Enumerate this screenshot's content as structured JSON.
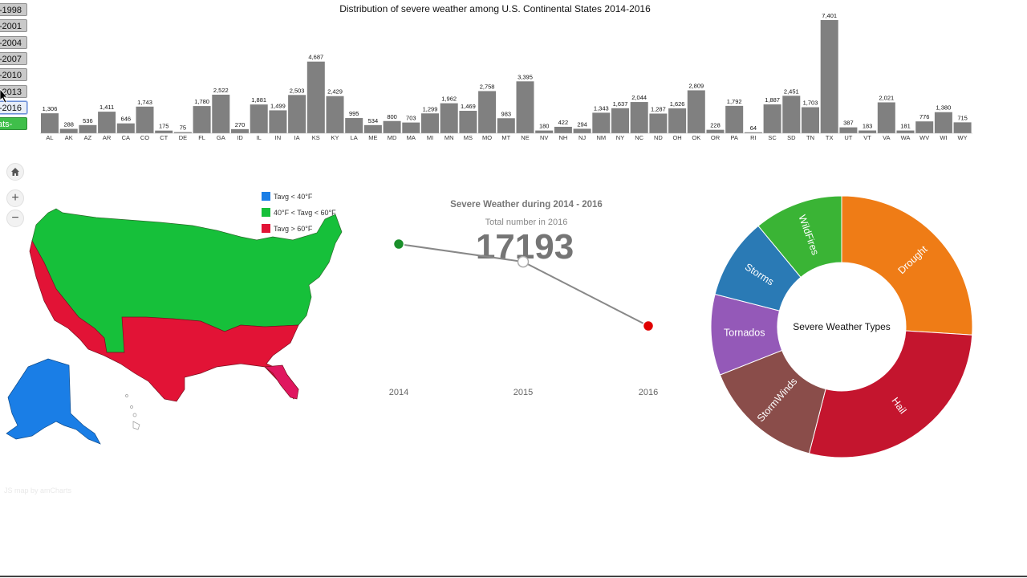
{
  "year_buttons": [
    {
      "label": "-1998",
      "selected": false
    },
    {
      "label": "-2001",
      "selected": false
    },
    {
      "label": "-2004",
      "selected": false
    },
    {
      "label": "-2007",
      "selected": false
    },
    {
      "label": "-2010",
      "selected": false
    },
    {
      "label": "-2013",
      "selected": false
    },
    {
      "label": "-2016",
      "selected": true
    },
    {
      "label": "ats-",
      "selected": false
    }
  ],
  "map": {
    "legend": [
      {
        "label": "Tavg < 40°F",
        "color": "#1a7ee6"
      },
      {
        "label": "40°F < Tavg < 60°F",
        "color": "#16c03a"
      },
      {
        "label": "Tavg > 60°F",
        "color": "#e21336"
      }
    ],
    "credit": "JS map by amCharts",
    "controls": [
      "home-icon",
      "plus-icon",
      "minus-icon"
    ]
  },
  "chart_data": [
    {
      "type": "bar",
      "title": "Distribution of severe weather among U.S. Continental States 2014-2016",
      "categories": [
        "AL",
        "AK",
        "AZ",
        "AR",
        "CA",
        "CO",
        "CT",
        "DE",
        "FL",
        "GA",
        "ID",
        "IL",
        "IN",
        "IA",
        "KS",
        "KY",
        "LA",
        "ME",
        "MD",
        "MA",
        "MI",
        "MN",
        "MS",
        "MO",
        "MT",
        "NE",
        "NV",
        "NH",
        "NJ",
        "NM",
        "NY",
        "NC",
        "ND",
        "OH",
        "OK",
        "OR",
        "PA",
        "RI",
        "SC",
        "SD",
        "TN",
        "TX",
        "UT",
        "VT",
        "VA",
        "WA",
        "WV",
        "WI",
        "WY"
      ],
      "values": [
        1306,
        288,
        536,
        1411,
        646,
        1743,
        175,
        75,
        1780,
        2522,
        270,
        1881,
        1499,
        2503,
        4687,
        2429,
        995,
        534,
        800,
        703,
        1299,
        1962,
        1469,
        2758,
        983,
        3395,
        180,
        422,
        294,
        1343,
        1637,
        2044,
        1287,
        1626,
        2809,
        228,
        1792,
        64,
        1887,
        2451,
        1703,
        7401,
        387,
        183,
        2021,
        181,
        776,
        1380,
        715
      ],
      "value_labels": [
        "1,306",
        "288",
        "536",
        "1,411",
        "646",
        "1,743",
        "175",
        "75",
        "1,780",
        "2,522",
        "270",
        "1,881",
        "1,499",
        "2,503",
        "4,687",
        "2,429",
        "995",
        "534",
        "800",
        "703",
        "1,299",
        "1,962",
        "1,469",
        "2,758",
        "983",
        "3,395",
        "180",
        "422",
        "294",
        "1,343",
        "1,637",
        "2,044",
        "1,287",
        "1,626",
        "2,809",
        "228",
        "1,792",
        "64",
        "1,887",
        "2,451",
        "1,703",
        "7,401",
        "387",
        "183",
        "2,021",
        "181",
        "776",
        "1,380",
        "715"
      ],
      "color": "#808080",
      "ylim": [
        0,
        7401
      ]
    },
    {
      "type": "line",
      "title": "Severe Weather during 2014 - 2016",
      "subtitle": "Total number in 2016",
      "big_value": "17193",
      "x": [
        "2014",
        "2015",
        "2016"
      ],
      "point_colors": [
        "#1a8f2a",
        "#ffffff",
        "#e00000"
      ],
      "ylim": [
        0,
        1
      ],
      "values": [
        0.8,
        0.67,
        0.2
      ]
    },
    {
      "type": "pie",
      "center_label": "Severe Weather Types",
      "slices": [
        {
          "label": "Drought",
          "value": 26,
          "color": "#ef7c16"
        },
        {
          "label": "Hail",
          "value": 28,
          "color": "#c4152e"
        },
        {
          "label": "StormWinds",
          "value": 15,
          "color": "#8a4d4a"
        },
        {
          "label": "Tornados",
          "value": 10,
          "color": "#9459b8"
        },
        {
          "label": "Storms",
          "value": 10,
          "color": "#2a7ab5"
        },
        {
          "label": "WildFires",
          "value": 11,
          "color": "#3ab435"
        }
      ]
    }
  ]
}
